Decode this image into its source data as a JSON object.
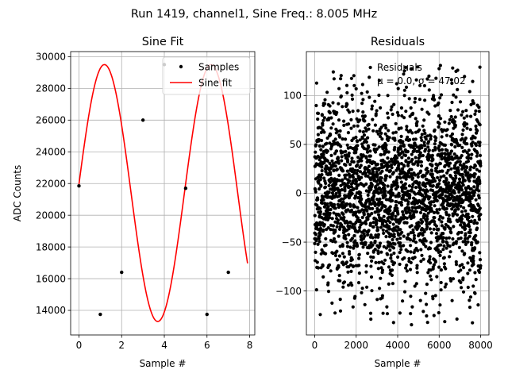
{
  "suptitle": "Run 1419, channel1, Sine Freq.: 8.005 MHz",
  "chart_data": [
    {
      "type": "line",
      "title": "Sine Fit",
      "xlabel": "Sample #",
      "ylabel": "ADC Counts",
      "xlim": [
        -0.39,
        8.24
      ],
      "ylim": [
        12450,
        30320
      ],
      "xticks": [
        0,
        2,
        4,
        6,
        8
      ],
      "yticks": [
        14000,
        16000,
        18000,
        20000,
        22000,
        24000,
        26000,
        28000,
        30000
      ],
      "grid": true,
      "legend_position": "top-right",
      "colors": {
        "samples": "#000000",
        "fit": "#ff0000",
        "grid": "#b0b0b0"
      },
      "series": [
        {
          "name": "Samples",
          "kind": "scatter",
          "x": [
            0,
            1,
            2,
            3,
            4,
            5,
            6,
            7
          ],
          "y": [
            21850,
            13750,
            16400,
            26000,
            29500,
            21700,
            13750,
            16400
          ]
        },
        {
          "name": "Sine fit",
          "kind": "line",
          "function": "sine",
          "x_range": [
            0,
            7.9
          ],
          "offset": 21400,
          "amplitude": 8100,
          "cycles_per_sample": 0.20013,
          "phase": 0.07
        }
      ]
    },
    {
      "type": "scatter",
      "title": "Residuals",
      "xlabel": "Sample #",
      "ylabel": "",
      "xlim": [
        -400,
        8400
      ],
      "ylim": [
        -145,
        145
      ],
      "xticks": [
        0,
        2000,
        4000,
        6000,
        8000
      ],
      "yticks": [
        -100,
        -50,
        0,
        50,
        100
      ],
      "grid": true,
      "legend_position": "top-right",
      "colors": {
        "points": "#000000",
        "grid": "#b0b0b0"
      },
      "series": [
        {
          "name": "Residuals",
          "n_points": 8000,
          "x_range": [
            0,
            7999
          ],
          "mean": 0.0,
          "std": 47.02,
          "min": -135,
          "max": 131
        }
      ],
      "legend_lines": [
        "Residuals",
        "μ = 0.0, σ = 47.02"
      ]
    }
  ]
}
